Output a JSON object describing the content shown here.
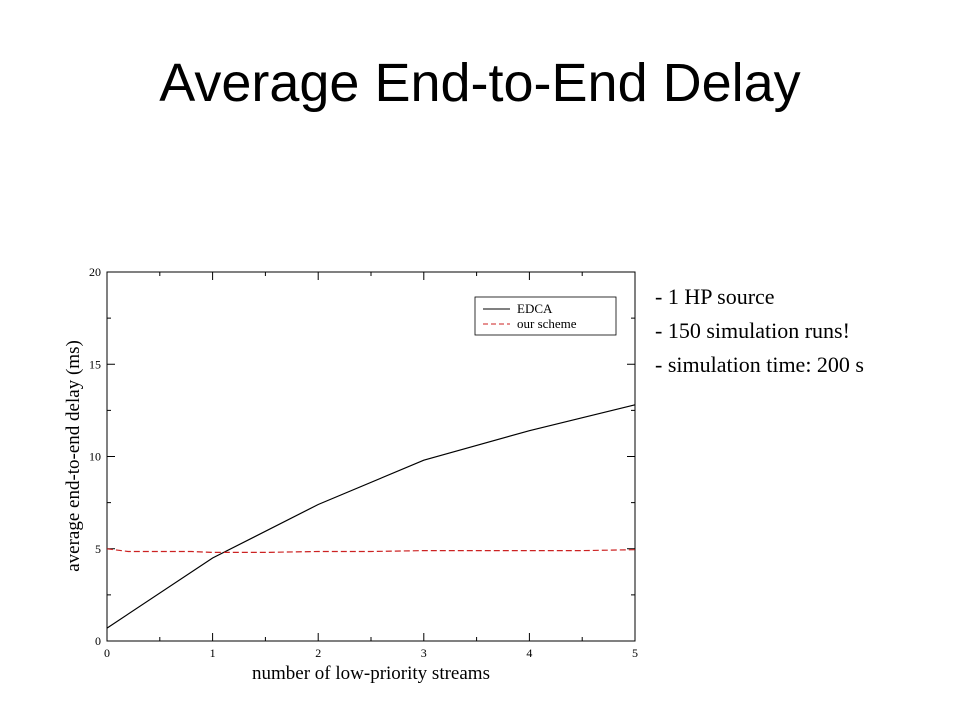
{
  "slide": {
    "title": "Average End-to-End Delay",
    "notes": [
      "- 1 HP source",
      "- 150 simulation runs!",
      "- simulation time: 200 s"
    ]
  },
  "chart_data": {
    "type": "line",
    "title": "",
    "xlabel": "number of low-priority streams",
    "ylabel": "average end-to-end delay (ms)",
    "xlim": [
      0,
      5
    ],
    "ylim": [
      0,
      20
    ],
    "xticks": [
      0,
      1,
      2,
      3,
      4,
      5
    ],
    "yticks": [
      0,
      5,
      10,
      15,
      20
    ],
    "grid": false,
    "legend_position": "top-right",
    "series": [
      {
        "name": "EDCA",
        "color": "#000000",
        "style": "solid",
        "x": [
          0,
          1,
          2,
          3,
          4,
          5
        ],
        "y": [
          0.7,
          4.5,
          7.4,
          9.8,
          11.4,
          12.8
        ]
      },
      {
        "name": "our scheme",
        "color": "#cc2222",
        "style": "dashed",
        "x": [
          0,
          0.2,
          0.5,
          0.8,
          1.0,
          1.2,
          1.5,
          2.0,
          2.5,
          3.0,
          3.5,
          4.0,
          4.5,
          5.0
        ],
        "y": [
          5.0,
          4.85,
          4.85,
          4.85,
          4.8,
          4.8,
          4.8,
          4.85,
          4.85,
          4.9,
          4.9,
          4.9,
          4.9,
          4.95
        ]
      }
    ]
  }
}
